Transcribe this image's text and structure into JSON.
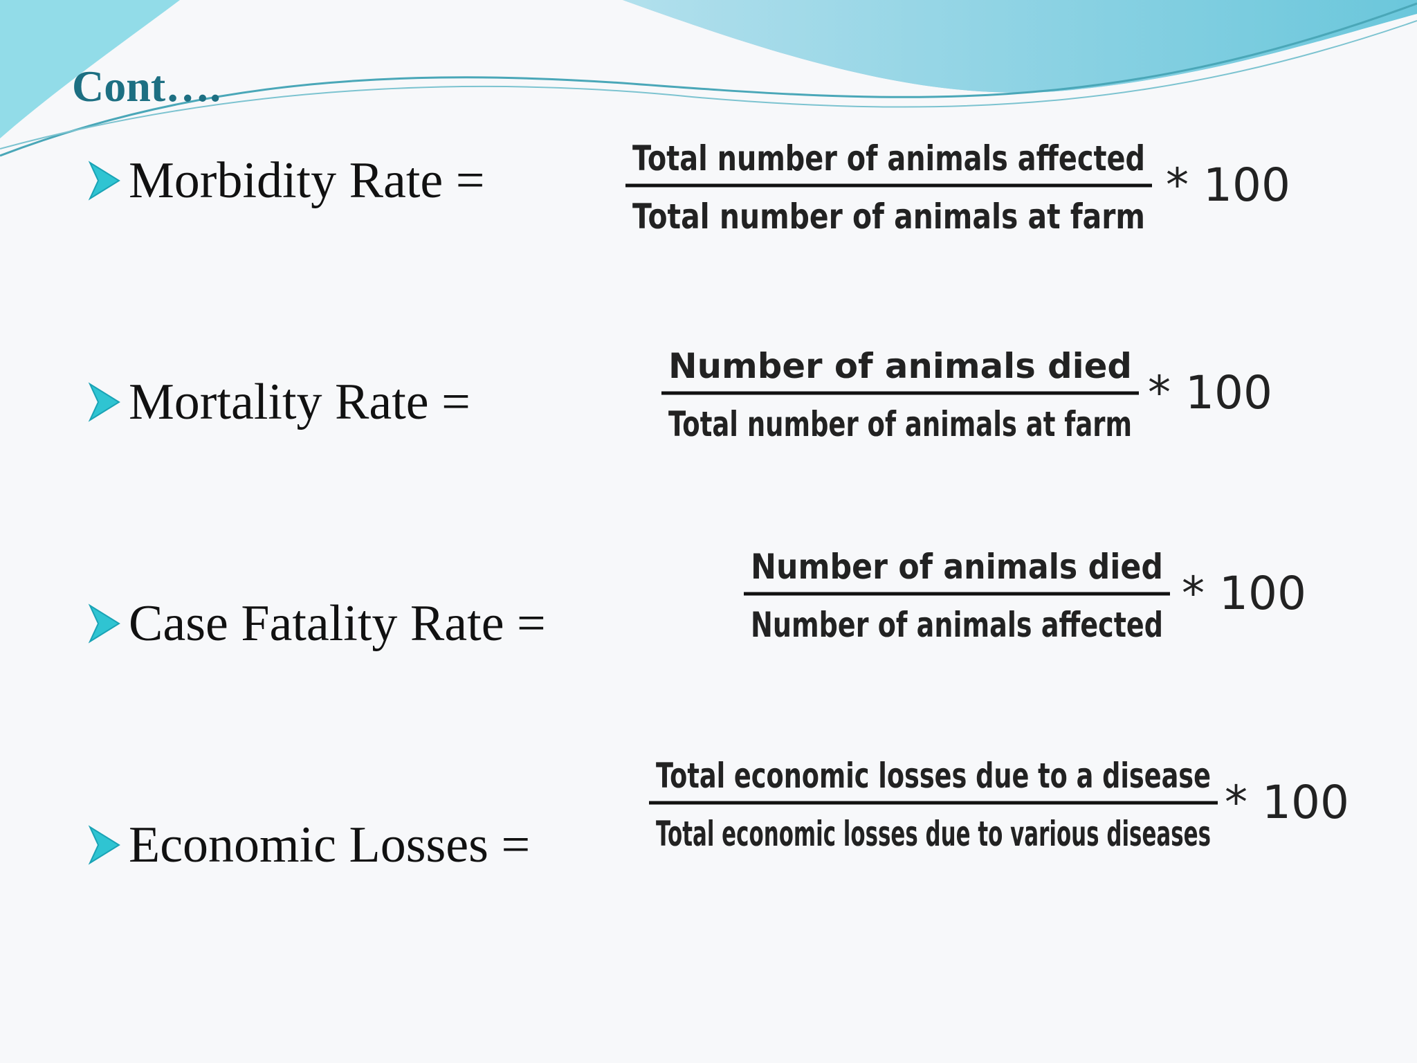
{
  "header": {
    "title": "Cont…."
  },
  "items": [
    {
      "label": "Morbidity Rate =",
      "numerator": "Total number of animals affected",
      "denominator": "Total number of animals at farm",
      "multiplier": "* 100"
    },
    {
      "label": "Mortality Rate =",
      "numerator": "Number of animals died",
      "denominator": "Total number of animals at farm",
      "multiplier": "* 100"
    },
    {
      "label": "Case Fatality Rate =",
      "numerator": "Number of animals died",
      "denominator": "Number of animals affected",
      "multiplier": "* 100"
    },
    {
      "label": "Economic Losses =",
      "numerator": "Total economic losses due to a disease",
      "denominator": "Total economic losses due to various diseases",
      "multiplier": "* 100"
    }
  ]
}
